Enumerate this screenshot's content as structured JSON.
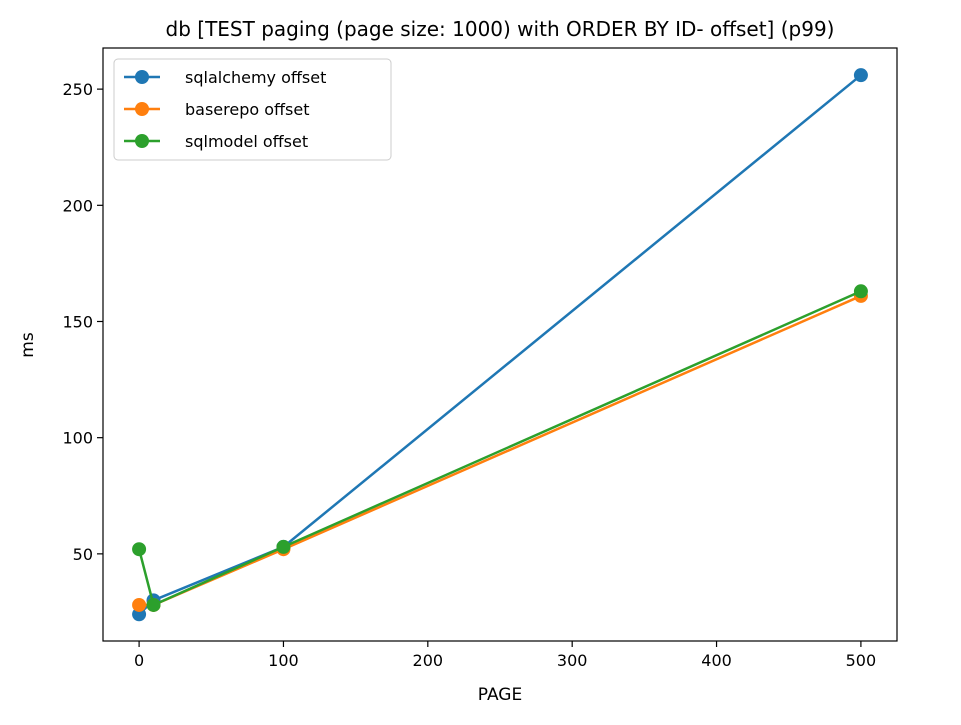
{
  "chart_data": {
    "type": "line",
    "title": "db [TEST paging (page size: 1000) with ORDER BY ID- offset] (p99)",
    "xlabel": "PAGE",
    "ylabel": "ms",
    "x": [
      0,
      10,
      100,
      500
    ],
    "xlim": [
      -25,
      525
    ],
    "ylim": [
      12.5,
      267.7
    ],
    "xticks": [
      0,
      100,
      200,
      300,
      400,
      500
    ],
    "yticks": [
      50,
      100,
      150,
      200,
      250
    ],
    "grid": false,
    "legend_position": "top-left",
    "series": [
      {
        "name": "sqlalchemy offset",
        "color": "#1f77b4",
        "values": [
          24,
          30,
          53,
          256
        ]
      },
      {
        "name": "baserepo offset",
        "color": "#ff7f0e",
        "values": [
          28,
          28,
          52,
          161
        ]
      },
      {
        "name": "sqlmodel offset",
        "color": "#2ca02c",
        "values": [
          52,
          28,
          53,
          163
        ]
      }
    ]
  }
}
